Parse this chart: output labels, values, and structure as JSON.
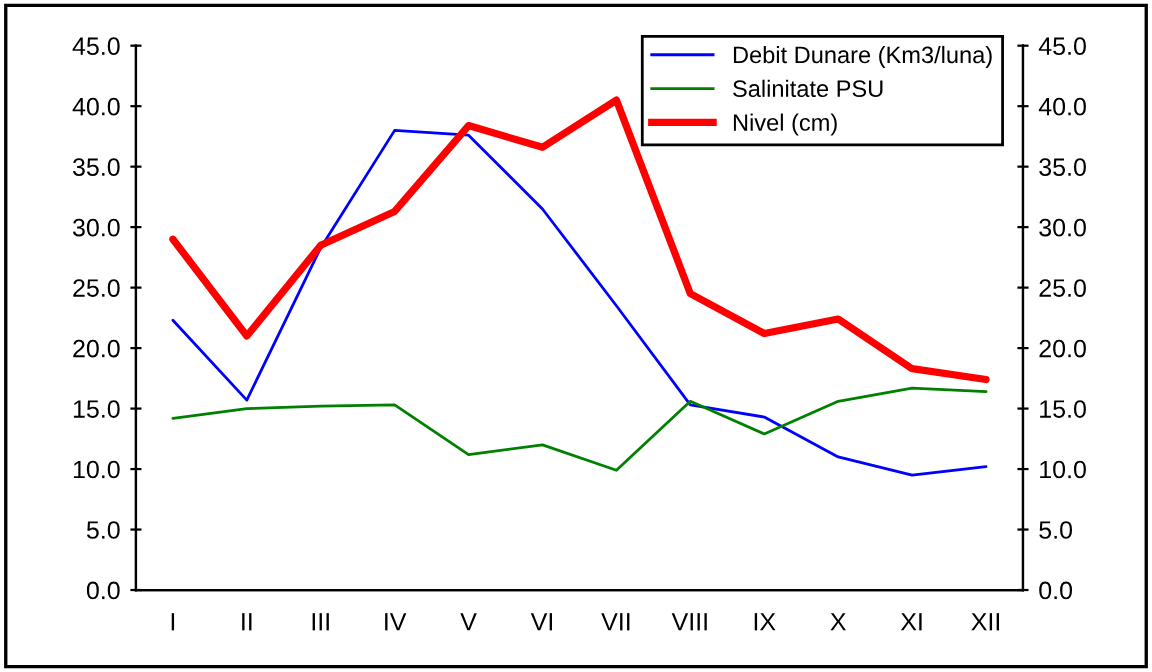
{
  "chart_data": {
    "type": "line",
    "categories": [
      "I",
      "II",
      "III",
      "IV",
      "V",
      "VI",
      "VII",
      "VIII",
      "IX",
      "X",
      "XI",
      "XII"
    ],
    "series": [
      {
        "name": "Debit Dunare (Km3/luna)",
        "color": "#0000ff",
        "values": [
          22.3,
          15.7,
          28.3,
          38.0,
          37.6,
          31.5,
          23.5,
          15.3,
          14.3,
          11.0,
          9.5,
          10.2
        ]
      },
      {
        "name": "Salinitate PSU",
        "color": "#008000",
        "values": [
          14.2,
          15.0,
          15.2,
          15.3,
          11.2,
          12.0,
          9.9,
          15.6,
          12.9,
          15.6,
          16.7,
          16.4
        ]
      },
      {
        "name": "Nivel (cm)",
        "color": "#ff0000",
        "values": [
          29.0,
          21.0,
          28.5,
          31.3,
          38.4,
          36.6,
          40.5,
          24.5,
          21.2,
          22.4,
          18.3,
          17.4
        ]
      }
    ],
    "ylim": [
      0,
      45
    ],
    "yticks": [
      {
        "value": 0,
        "label": "0.0"
      },
      {
        "value": 5,
        "label": "5.0"
      },
      {
        "value": 10,
        "label": "10.0"
      },
      {
        "value": 15,
        "label": "15.0"
      },
      {
        "value": 20,
        "label": "20.0"
      },
      {
        "value": 25,
        "label": "25.0"
      },
      {
        "value": 30,
        "label": "30.0"
      },
      {
        "value": 35,
        "label": "35.0"
      },
      {
        "value": 40,
        "label": "40.0"
      },
      {
        "value": 45,
        "label": "45.0"
      }
    ],
    "y2lim": [
      0,
      45
    ],
    "y2ticks": [
      {
        "value": 0,
        "label": "0.0"
      },
      {
        "value": 5,
        "label": "5.0"
      },
      {
        "value": 10,
        "label": "10.0"
      },
      {
        "value": 15,
        "label": "15.0"
      },
      {
        "value": 20,
        "label": "20.0"
      },
      {
        "value": 25,
        "label": "25.0"
      },
      {
        "value": 30,
        "label": "30.0"
      },
      {
        "value": 35,
        "label": "35.0"
      },
      {
        "value": 40,
        "label": "40.0"
      },
      {
        "value": 45,
        "label": "45.0"
      }
    ],
    "grid": false,
    "legend": "top right",
    "marker": "none",
    "line_style": "solid"
  }
}
